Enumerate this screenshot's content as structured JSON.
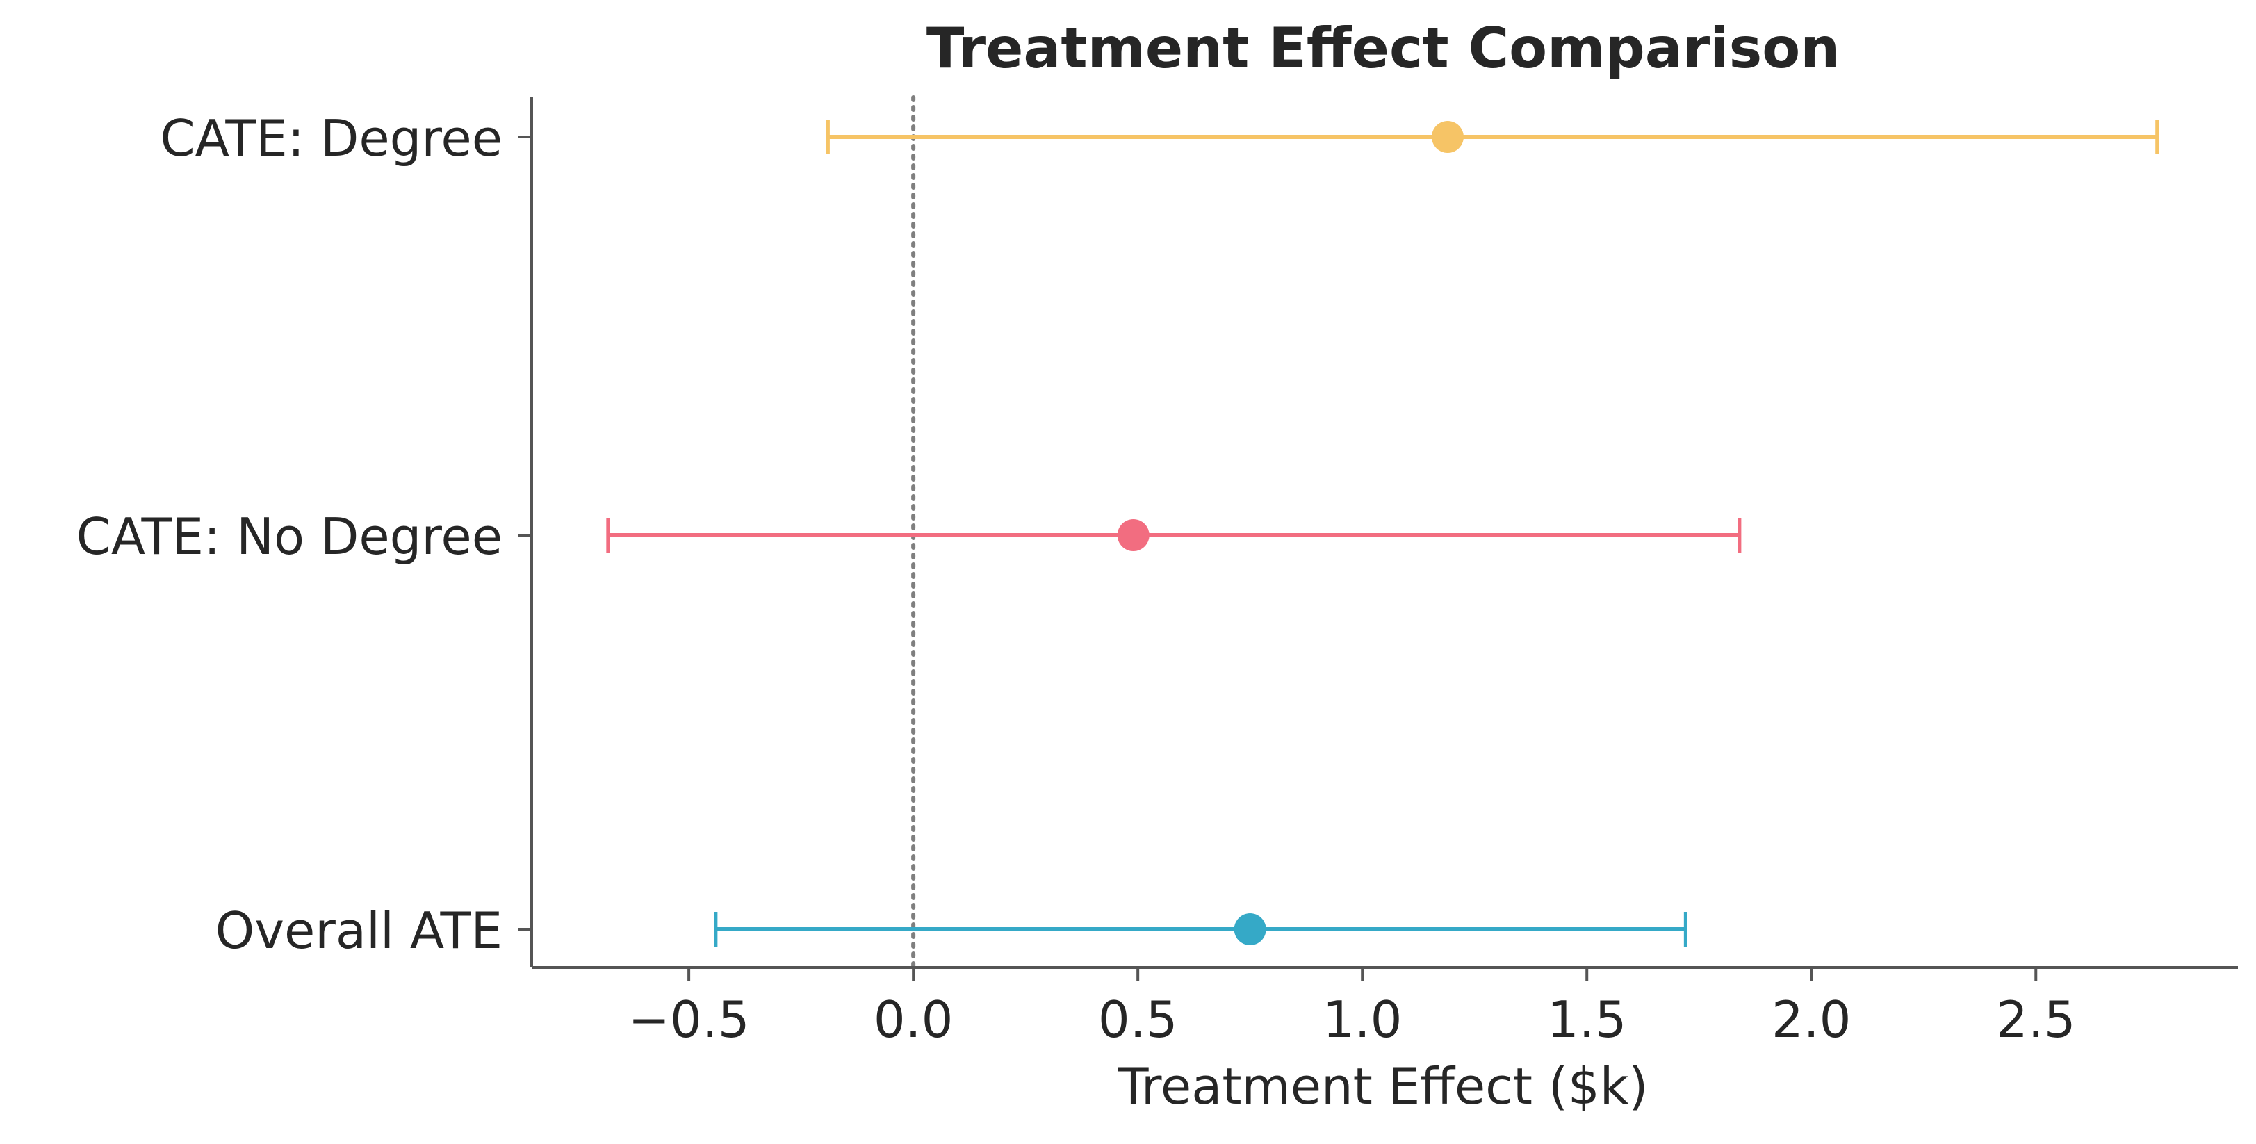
{
  "chart_data": {
    "type": "errorbar",
    "title": "Treatment Effect Comparison",
    "xlabel": "Treatment Effect ($k)",
    "ylabel": "",
    "xlim": [
      -0.85,
      2.95
    ],
    "xticks": [
      -0.5,
      0.0,
      0.5,
      1.0,
      1.5,
      2.0,
      2.5
    ],
    "xtick_labels": [
      "−0.5",
      "0.0",
      "0.5",
      "1.0",
      "1.5",
      "2.0",
      "2.5"
    ],
    "categories": [
      "CATE: Degree",
      "CATE: No Degree",
      "Overall ATE"
    ],
    "points": [
      {
        "label": "CATE: Degree",
        "estimate": 1.19,
        "ci_low": -0.19,
        "ci_high": 2.77,
        "color": "#F6C466"
      },
      {
        "label": "CATE: No Degree",
        "estimate": 0.49,
        "ci_low": -0.68,
        "ci_high": 1.84,
        "color": "#F26D80"
      },
      {
        "label": "Overall ATE",
        "estimate": 0.75,
        "ci_low": -0.44,
        "ci_high": 1.72,
        "color": "#35A9C7"
      }
    ],
    "reference_line": {
      "x": 0.0,
      "style": "dotted",
      "color": "#7f7f7f"
    },
    "grid": false,
    "legend": "none"
  }
}
